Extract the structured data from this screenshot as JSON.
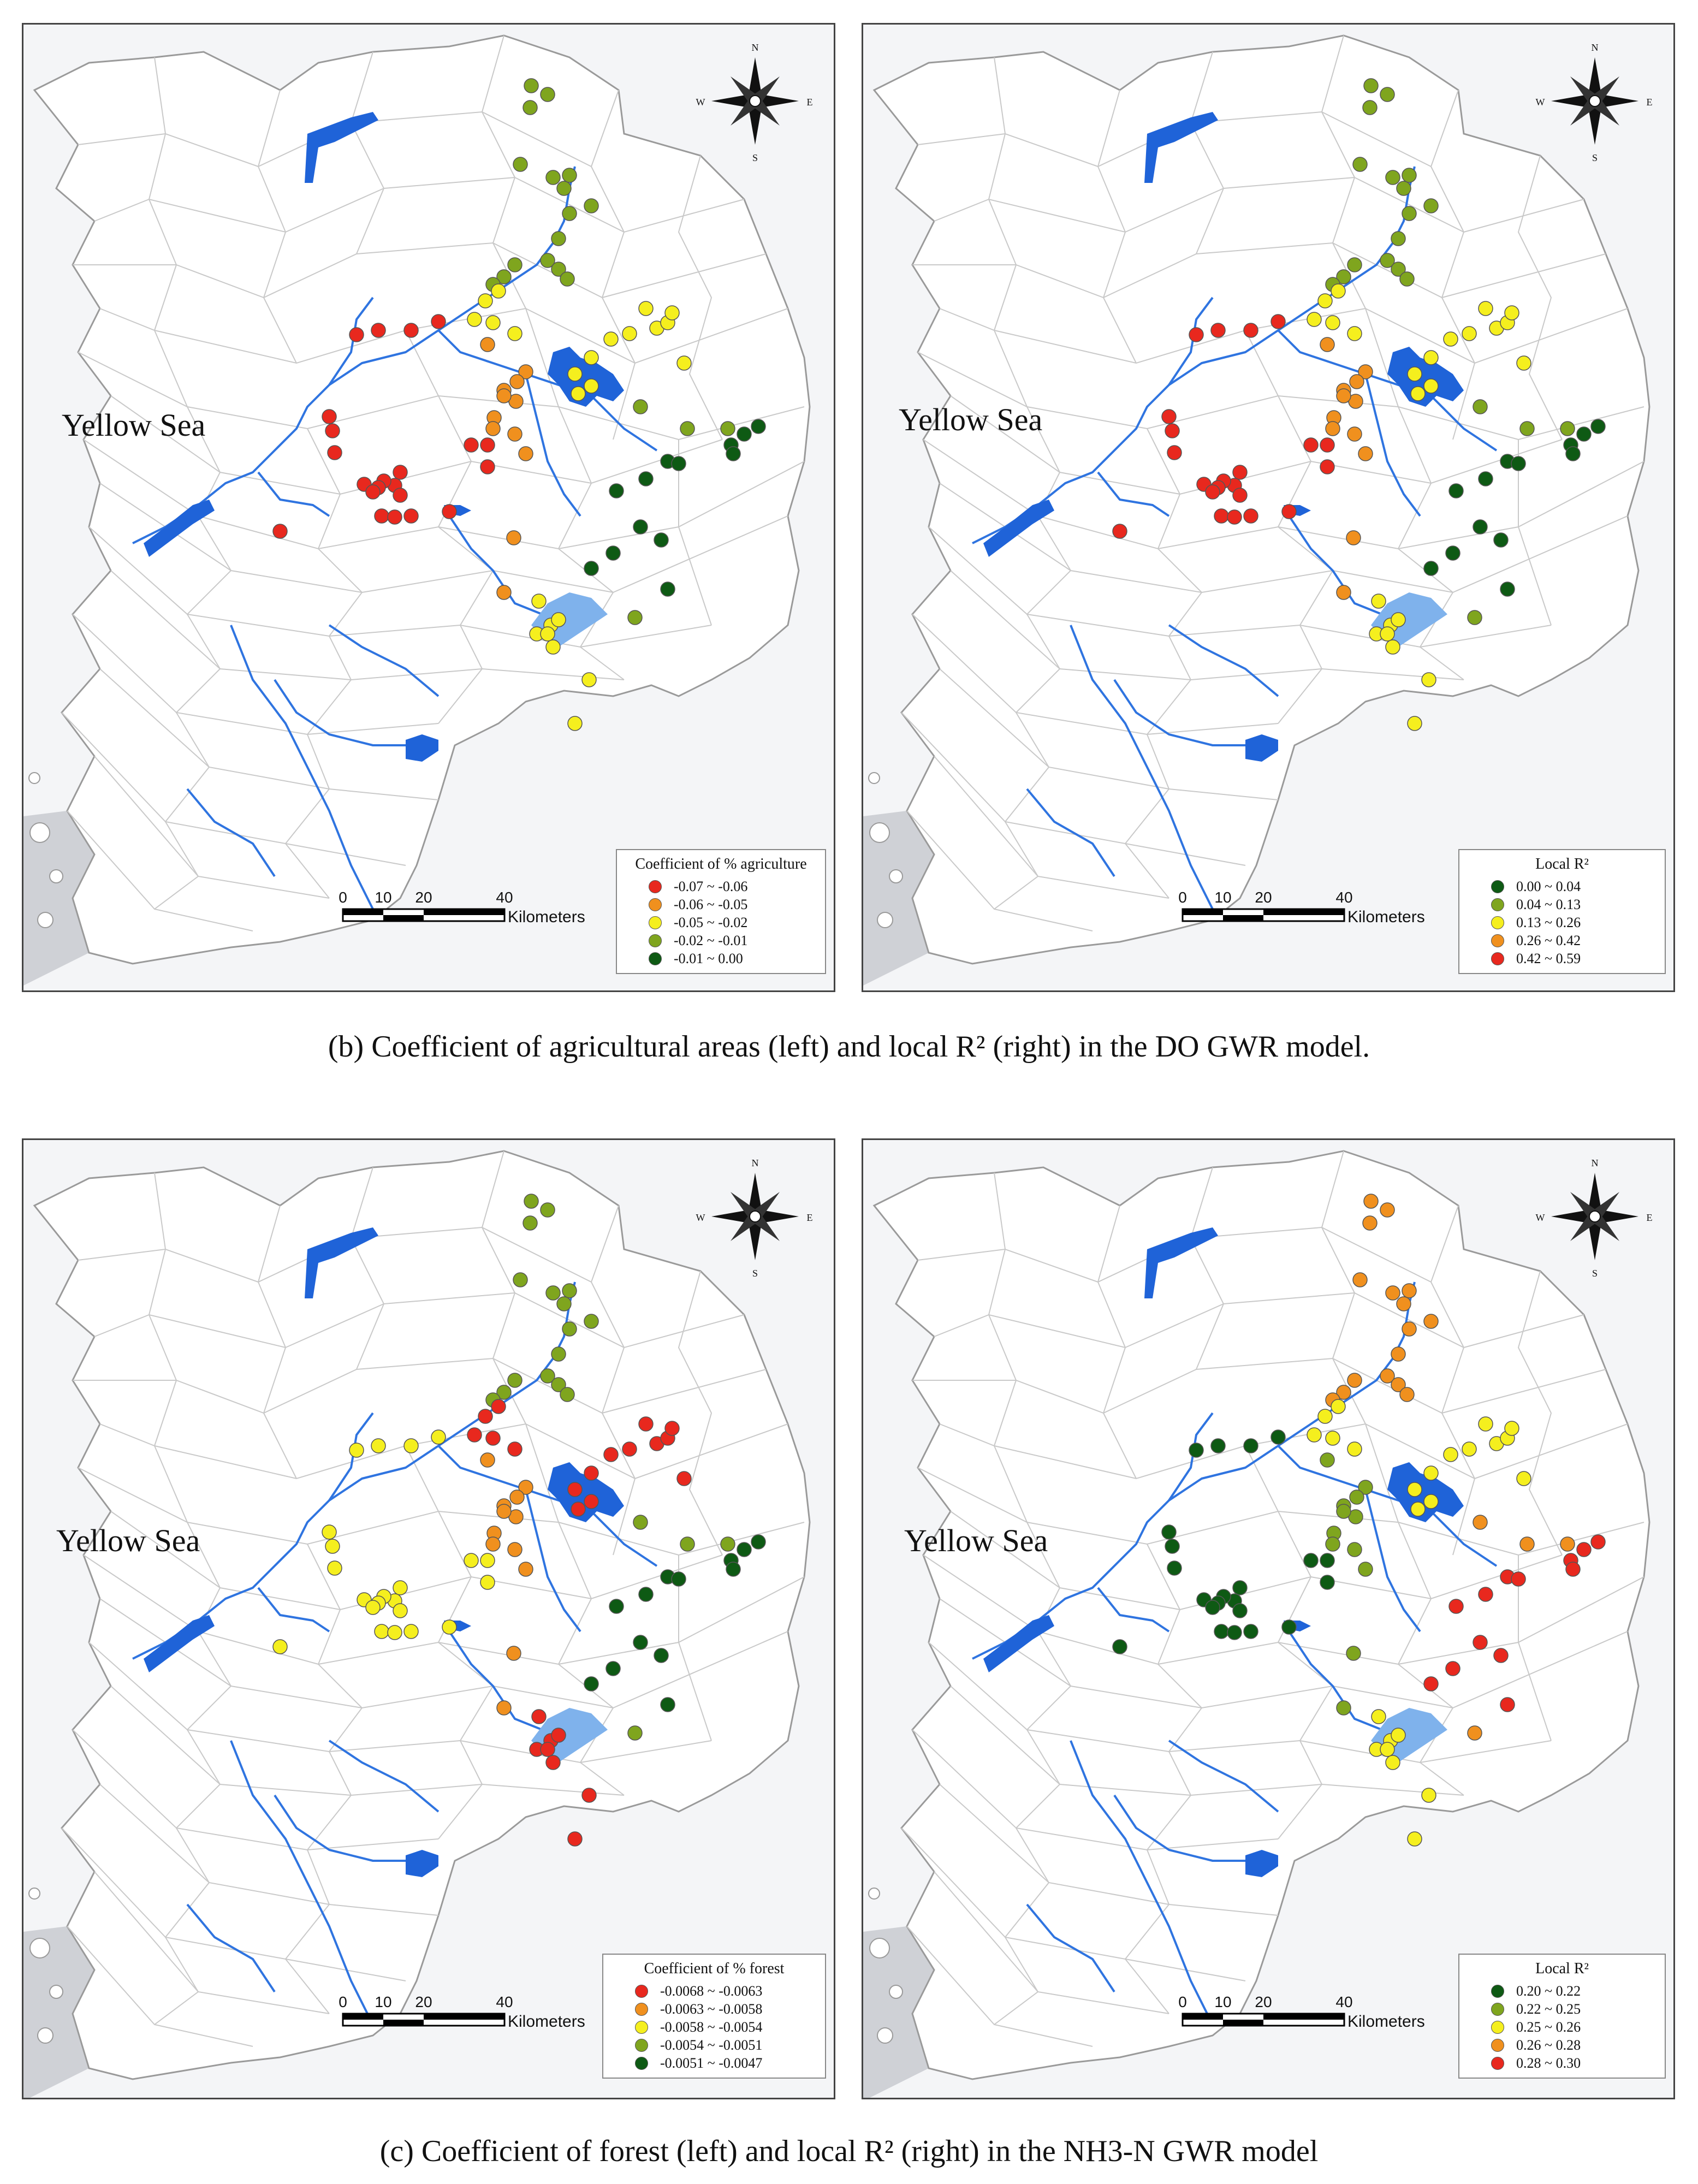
{
  "sea_label": "Yellow Sea",
  "compass": {
    "n": "N",
    "s": "S",
    "e": "E",
    "w": "W"
  },
  "scale_bar": {
    "ticks": [
      "0",
      "10",
      "20",
      "40"
    ],
    "unit": "Kilometers"
  },
  "panels": [
    {
      "legend": {
        "title": "Coefficient of % agriculture",
        "classes": [
          {
            "label": "-0.07 ~ -0.06",
            "color": "#e8281e"
          },
          {
            "label": "-0.06 ~ -0.05",
            "color": "#f0901e"
          },
          {
            "label": "-0.05 ~ -0.02",
            "color": "#f5ef1e"
          },
          {
            "label": "-0.02 ~ -0.01",
            "color": "#7fa51e"
          },
          {
            "label": "-0.01 ~ 0.00",
            "color": "#0e5a14"
          }
        ]
      }
    },
    {
      "legend": {
        "title": "Local R²",
        "classes": [
          {
            "label": "0.00 ~ 0.04",
            "color": "#0e5a14"
          },
          {
            "label": "0.04 ~ 0.13",
            "color": "#7fa51e"
          },
          {
            "label": "0.13 ~ 0.26",
            "color": "#f5ef1e"
          },
          {
            "label": "0.26 ~ 0.42",
            "color": "#f0901e"
          },
          {
            "label": "0.42 ~ 0.59",
            "color": "#e8281e"
          }
        ]
      }
    },
    {
      "legend": {
        "title": "Coefficient of % forest",
        "classes": [
          {
            "label": "-0.0068 ~ -0.0063",
            "color": "#e8281e"
          },
          {
            "label": "-0.0063 ~ -0.0058",
            "color": "#f0901e"
          },
          {
            "label": "-0.0058 ~ -0.0054",
            "color": "#f5ef1e"
          },
          {
            "label": "-0.0054 ~ -0.0051",
            "color": "#7fa51e"
          },
          {
            "label": "-0.0051 ~ -0.0047",
            "color": "#0e5a14"
          }
        ]
      }
    },
    {
      "legend": {
        "title": "Local R²",
        "classes": [
          {
            "label": "0.20 ~ 0.22",
            "color": "#0e5a14"
          },
          {
            "label": "0.22 ~ 0.25",
            "color": "#7fa51e"
          },
          {
            "label": "0.25 ~ 0.26",
            "color": "#f5ef1e"
          },
          {
            "label": "0.26 ~ 0.28",
            "color": "#f0901e"
          },
          {
            "label": "0.28 ~ 0.30",
            "color": "#e8281e"
          }
        ]
      }
    }
  ],
  "captions": {
    "b": "(b) Coefficient of agricultural areas (left) and local R² (right) in the DO GWR model.",
    "c": "(c) Coefficient of forest (left) and local R² (right) in the NH3-N GWR model"
  }
}
